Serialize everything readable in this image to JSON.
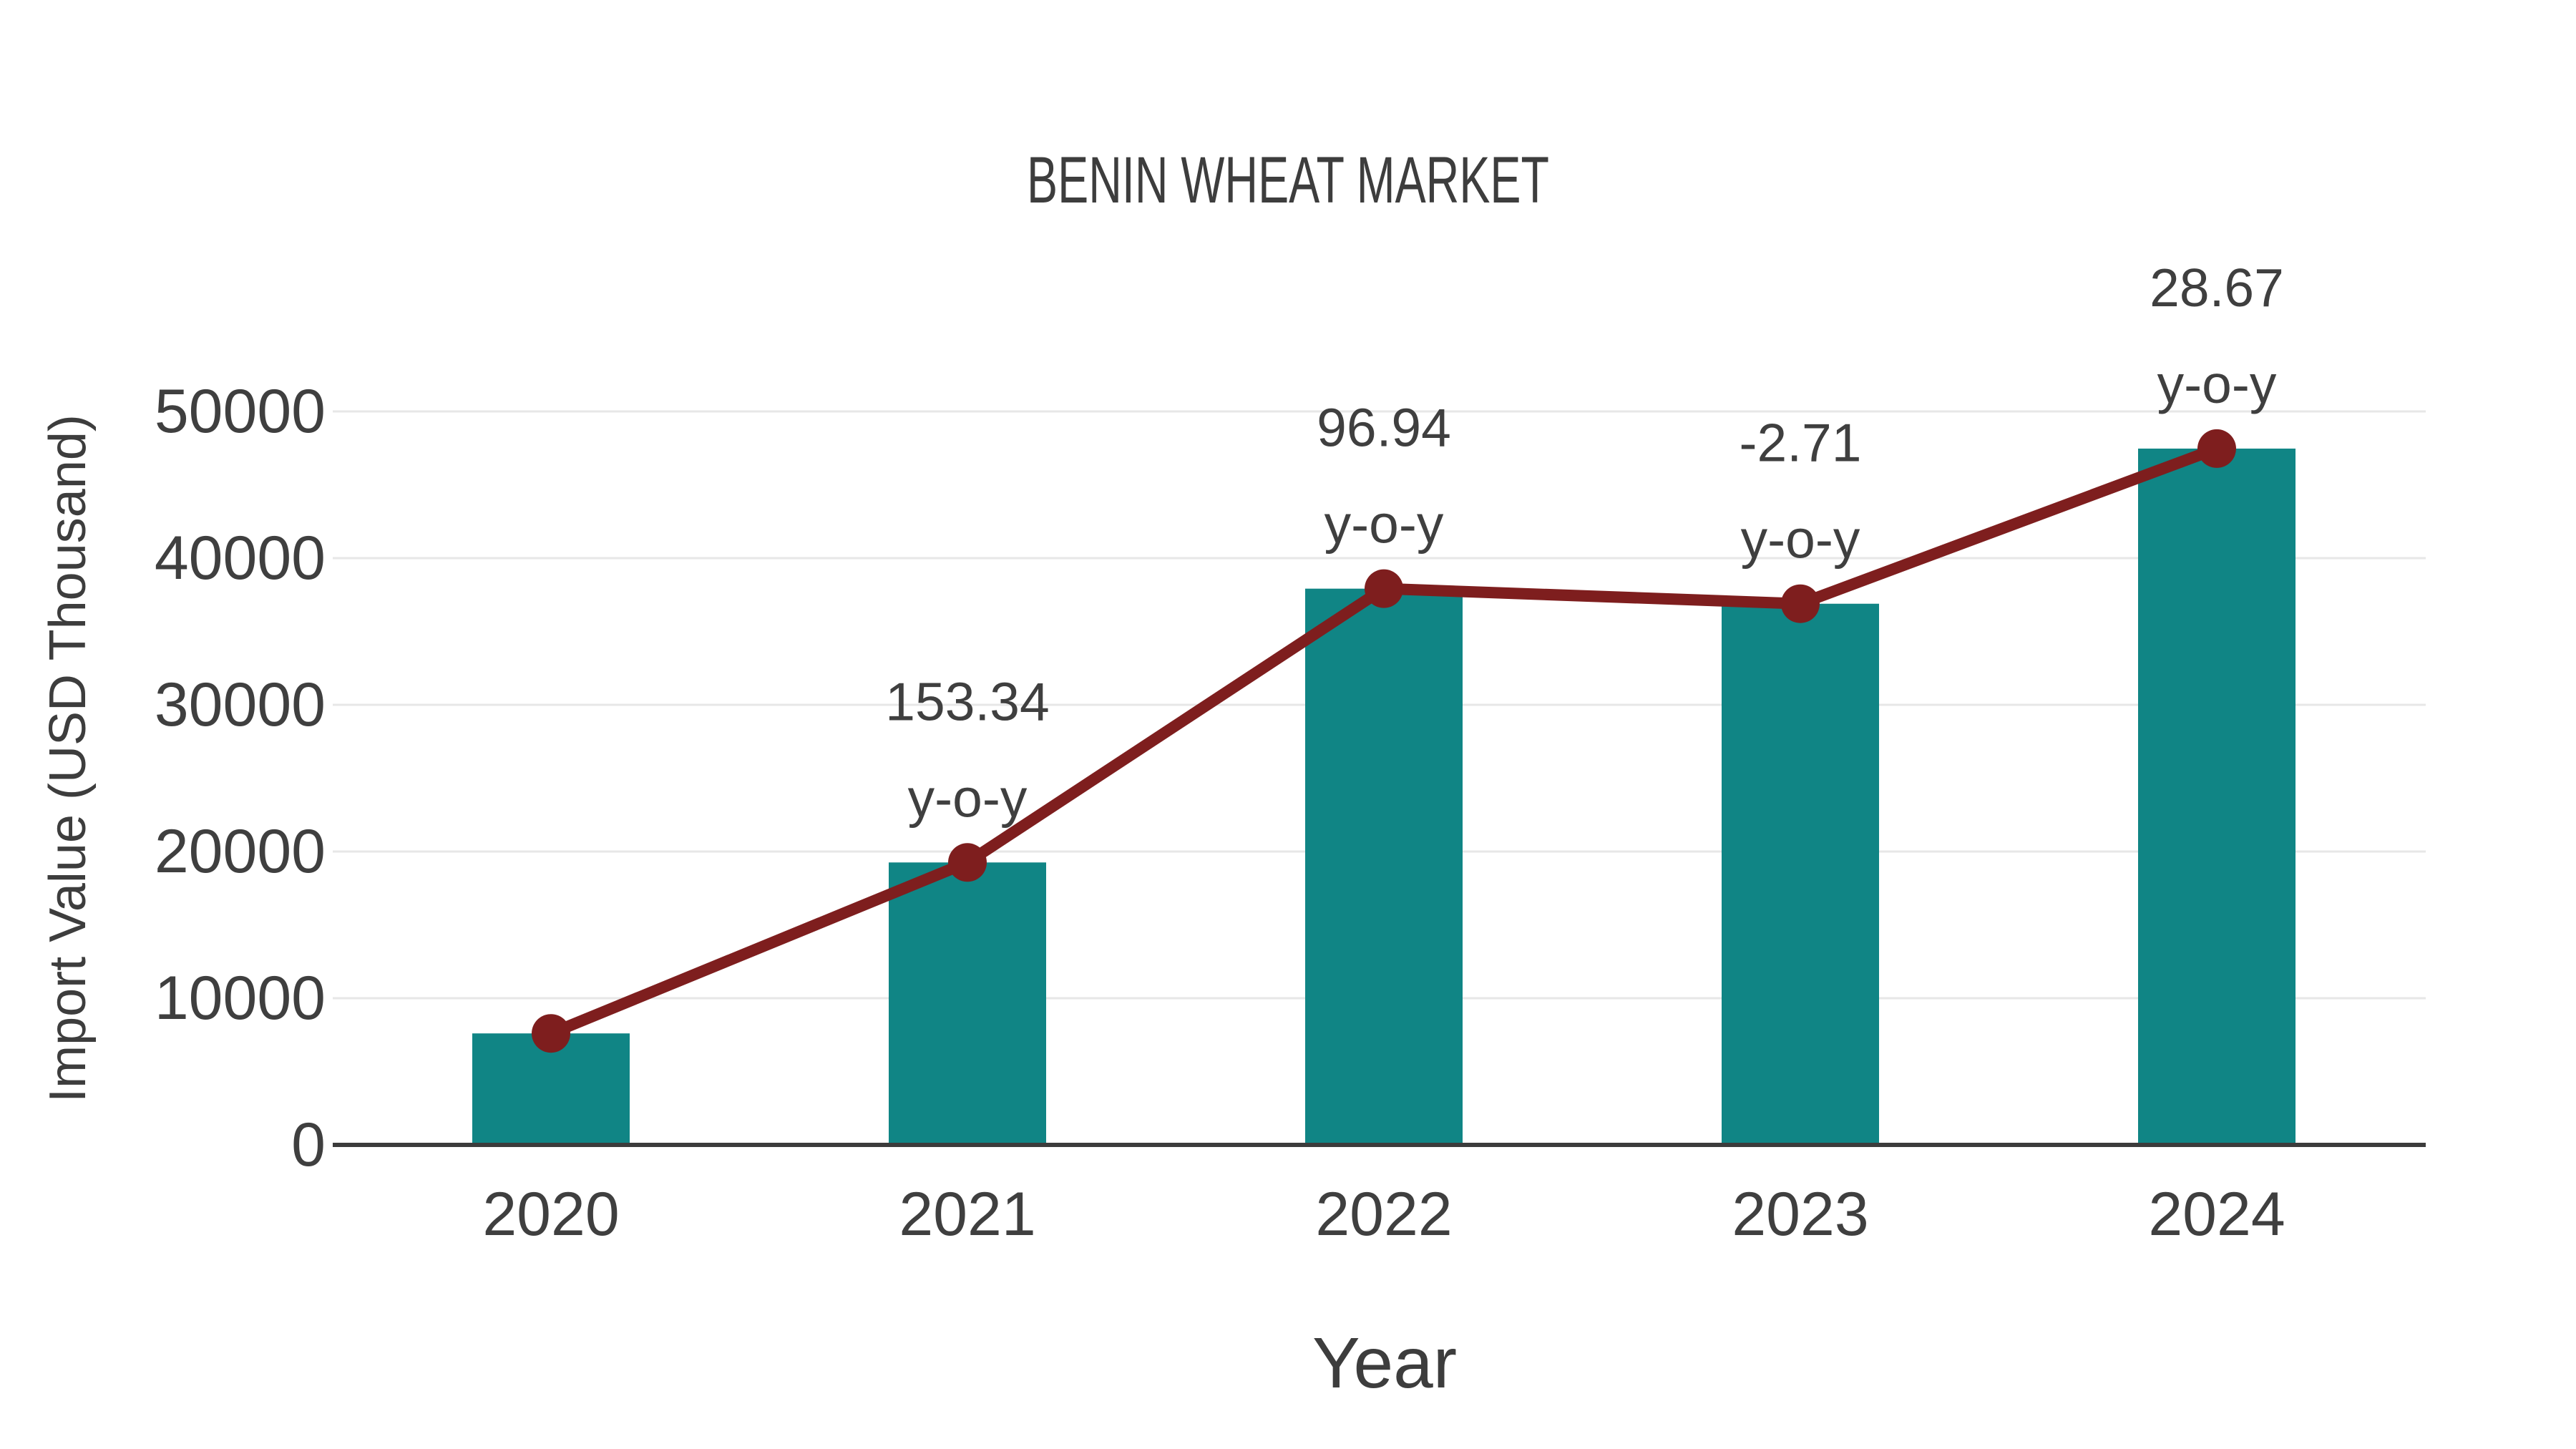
{
  "title": "BENIN WHEAT MARKET",
  "chart_data": {
    "type": "bar",
    "title": "BENIN WHEAT MARKET",
    "xlabel": "Year",
    "ylabel": "Import Value (USD Thousand)",
    "categories": [
      "2020",
      "2021",
      "2022",
      "2023",
      "2024"
    ],
    "series": [
      {
        "name": "Import Value (USD Thousand)",
        "type": "bar",
        "color": "#108585",
        "values": [
          7600,
          19254,
          37919,
          36891,
          47468
        ]
      },
      {
        "name": "Import Value trend line",
        "type": "line",
        "color": "#7e1e1e",
        "values": [
          7600,
          19254,
          37919,
          36891,
          47468
        ]
      }
    ],
    "growth_pct": [
      null,
      153.34,
      96.94,
      -2.71,
      28.67
    ],
    "annotations": [
      {
        "category": "2021",
        "line1": "153.34",
        "line2": "y-o-y"
      },
      {
        "category": "2022",
        "line1": "96.94",
        "line2": "y-o-y"
      },
      {
        "category": "2023",
        "line1": "-2.71",
        "line2": "y-o-y"
      },
      {
        "category": "2024",
        "line1": "28.67",
        "line2": "y-o-y"
      }
    ],
    "ylim": [
      0,
      50000
    ],
    "yticks": [
      0,
      10000,
      20000,
      30000,
      40000,
      50000
    ],
    "grid": true,
    "legend_position": "none"
  },
  "colors": {
    "bar": "#108585",
    "line": "#7e1e1e",
    "marker": "#7e1e1e",
    "gridline": "#e7e7e7",
    "axis_line": "#3c3c3c",
    "text": "#3d3d3d"
  }
}
